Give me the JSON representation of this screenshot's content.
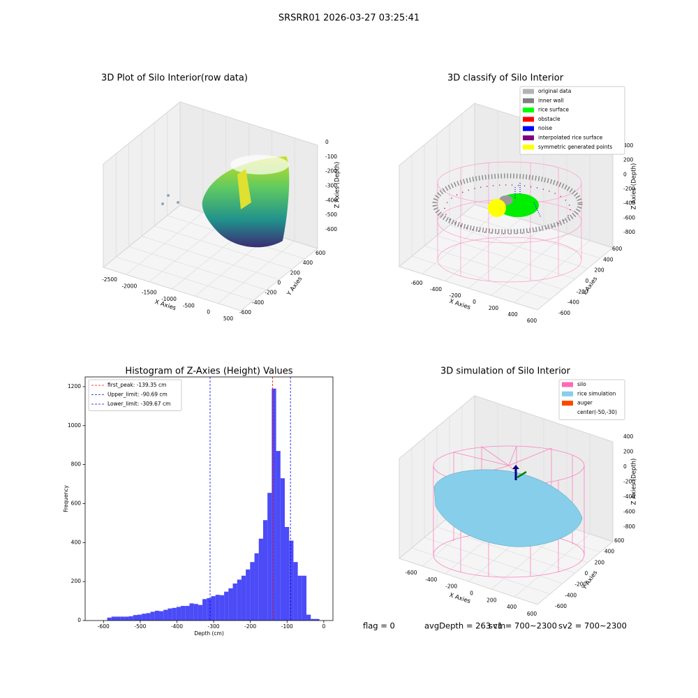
{
  "title": "SRSRR01 2026-03-27 03:25:41",
  "footer": [
    "flag = 0",
    "avgDepth = 263 cm",
    "sv1 = 700~2300",
    "sv2 = 700~2300"
  ],
  "chart_data": [
    {
      "type": "scatter3d",
      "title": "3D Plot of Silo Interior(row data)",
      "xlabel": "X Axies",
      "ylabel": "Y Axies",
      "zlabel": "Z Axies (Depth)",
      "xticks": [
        -2500,
        -2000,
        -1500,
        -1000,
        -500,
        0,
        500
      ],
      "yticks": [
        -600,
        -400,
        -200,
        0,
        200,
        400,
        600
      ],
      "zticks": [
        -600,
        -500,
        -400,
        -300,
        -200,
        -100,
        0
      ]
    },
    {
      "type": "scatter3d",
      "title": "3D classify of Silo Interior",
      "xlabel": "X Axies",
      "ylabel": "Y Axies",
      "zlabel": "Z Axies (Depth)",
      "xticks": [
        -600,
        -400,
        -200,
        0,
        200,
        400,
        600
      ],
      "yticks": [
        -600,
        -400,
        -200,
        0,
        200,
        400,
        600
      ],
      "zticks": [
        -800,
        -600,
        -400,
        -200,
        0,
        200,
        400
      ],
      "series": [
        {
          "name": "original data",
          "color": "#b3b3b3"
        },
        {
          "name": "inner wall",
          "color": "#808080"
        },
        {
          "name": "rice surface",
          "color": "#00ff00"
        },
        {
          "name": "obstacle",
          "color": "#ff0000"
        },
        {
          "name": "noise",
          "color": "#0000ff"
        },
        {
          "name": "interpolated rice surface",
          "color": "#800080"
        },
        {
          "name": "symmetric generated points",
          "color": "#ffff00"
        }
      ]
    },
    {
      "type": "histogram",
      "title": "Histogram of Z-Axies (Height) Values",
      "xlabel": "Depth (cm)",
      "ylabel": "Frequency",
      "color": "#4b4bf7",
      "bins": [
        -590,
        -578.2,
        -566.4,
        -554.6,
        -542.8,
        -531,
        -519.2,
        -507.4,
        -495.6,
        -483.8,
        -472,
        -460.2,
        -448.4,
        -436.6,
        -424.8,
        -413,
        -401.2,
        -389.4,
        -377.6,
        -365.8,
        -354,
        -342.2,
        -330.4,
        -318.6,
        -306.8,
        -295,
        -283.2,
        -271.4,
        -259.6,
        -247.8,
        -236,
        -224.2,
        -212.4,
        -200.6,
        -188.8,
        -177,
        -165.2,
        -153.4,
        -141.6,
        -129.8,
        -118,
        -106.2,
        -94.4,
        -82.6,
        -70.8,
        -59,
        -47.2,
        -35.4,
        -23.6,
        -11.8,
        0
      ],
      "values": [
        15,
        20,
        20,
        20,
        20,
        22,
        28,
        30,
        35,
        38,
        45,
        50,
        48,
        55,
        62,
        65,
        70,
        75,
        75,
        88,
        85,
        80,
        110,
        115,
        125,
        132,
        130,
        148,
        165,
        190,
        210,
        230,
        262,
        300,
        345,
        420,
        515,
        655,
        1190,
        870,
        730,
        480,
        410,
        300,
        230,
        230,
        30,
        8,
        8,
        0
      ],
      "vlines": [
        {
          "value": -139.35,
          "label": "first_peak: -139.35 cm",
          "color": "#ff0000"
        },
        {
          "value": -90.69,
          "label": "Upper_limit: -90.69 cm",
          "color": "#0000ff"
        },
        {
          "value": -309.67,
          "label": "Lower_limit: -309.67 cm",
          "color": "#0000ff"
        }
      ],
      "xlim": [
        -650,
        25
      ],
      "ylim": [
        0,
        1250
      ],
      "xticks": [
        -600,
        -500,
        -400,
        -300,
        -200,
        -100,
        0
      ],
      "yticks": [
        0,
        200,
        400,
        600,
        800,
        1000,
        1200
      ],
      "legend": "upper left"
    },
    {
      "type": "surface3d",
      "title": "3D simulation of Silo Interior",
      "xlabel": "X Axies",
      "ylabel": "Y Axies",
      "zlabel": "Z Axies (Depth)",
      "xticks": [
        -600,
        -400,
        -200,
        0,
        200,
        400,
        600
      ],
      "yticks": [
        -600,
        -400,
        -200,
        0,
        200,
        400,
        600
      ],
      "zticks": [
        -800,
        -600,
        -400,
        -200,
        0,
        200,
        400
      ],
      "series": [
        {
          "name": "silo",
          "color": "#ff69b4"
        },
        {
          "name": "rice simulation",
          "color": "#87ceeb"
        },
        {
          "name": "auger",
          "color": "#ff4500"
        },
        {
          "name": "center(-50,-30)",
          "color": null
        }
      ]
    }
  ]
}
